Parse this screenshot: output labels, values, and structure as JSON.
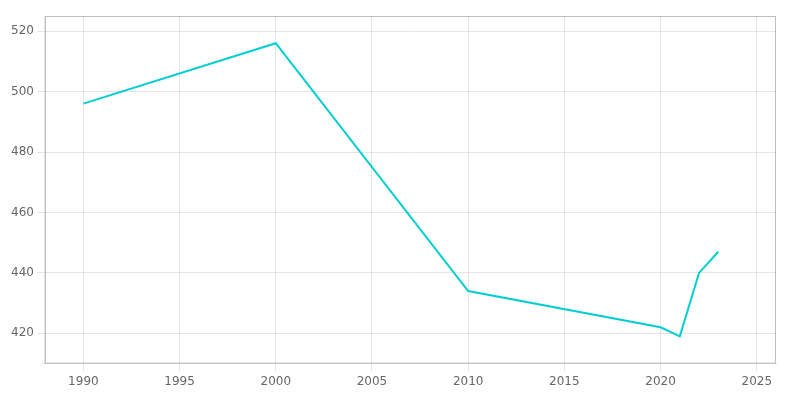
{
  "chart_data": {
    "type": "line",
    "x": [
      1990,
      2000,
      2010,
      2020,
      2021,
      2022,
      2023
    ],
    "values": [
      496,
      516,
      434,
      422,
      419,
      440,
      447
    ],
    "color": "#00CED1",
    "xlim": [
      1988,
      2026
    ],
    "ylim": [
      410,
      525
    ],
    "xticks": [
      1990,
      1995,
      2000,
      2005,
      2010,
      2015,
      2020,
      2025
    ],
    "yticks": [
      420,
      440,
      460,
      480,
      500,
      520
    ],
    "grid": true
  }
}
